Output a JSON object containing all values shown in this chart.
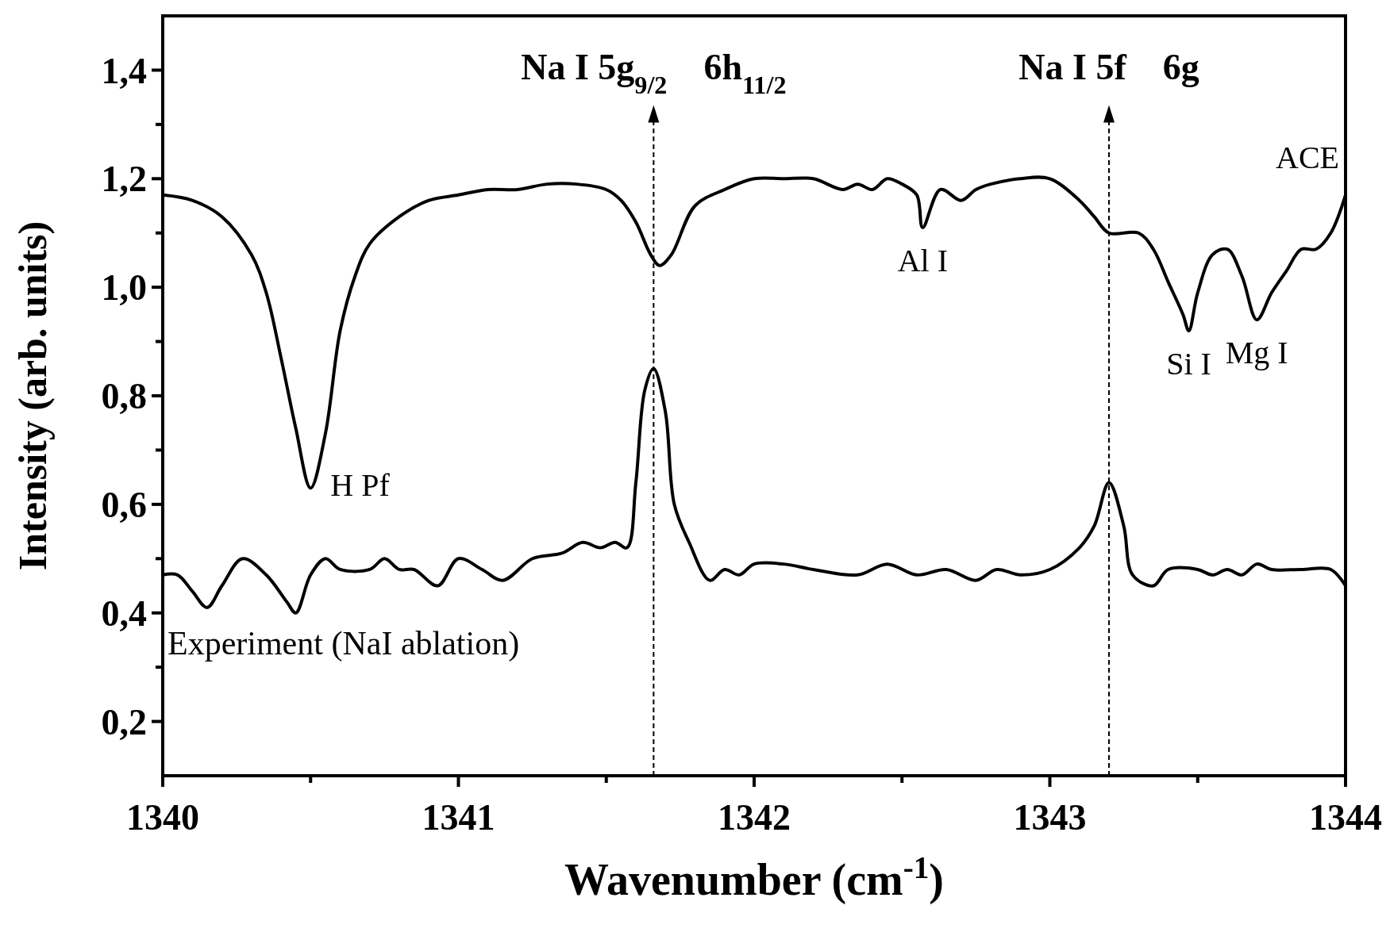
{
  "chart_data": {
    "type": "line",
    "xlabel": "Wavenumber (cm$^{-1}$)",
    "ylabel": "Intensity (arb. units)",
    "xlim": [
      1340,
      1344
    ],
    "ylim": [
      0.1,
      1.5
    ],
    "xticks": [
      1340,
      {
        "value": 1340.5,
        "label": null
      },
      1341,
      {
        "value": 1341.5,
        "label": null
      },
      1342,
      {
        "value": 1342.5,
        "label": null
      },
      1343,
      {
        "value": 1343.5,
        "label": null
      },
      1344
    ],
    "yticks": [
      {
        "value": 0.2,
        "label": "0,2"
      },
      {
        "value": 0.3,
        "label": null
      },
      {
        "value": 0.4,
        "label": "0,4"
      },
      {
        "value": 0.5,
        "label": null
      },
      {
        "value": 0.6,
        "label": "0,6"
      },
      {
        "value": 0.7,
        "label": null
      },
      {
        "value": 0.8,
        "label": "0,8"
      },
      {
        "value": 0.9,
        "label": null
      },
      {
        "value": 1.0,
        "label": "1,0"
      },
      {
        "value": 1.1,
        "label": null
      },
      {
        "value": 1.2,
        "label": "1,2"
      },
      {
        "value": 1.3,
        "label": null
      },
      {
        "value": 1.4,
        "label": "1,4"
      }
    ],
    "grid": false,
    "marker": "none",
    "line_style": "solid",
    "series": [
      {
        "name": "ACE",
        "color": "#000000",
        "x": [
          1340,
          1340.1,
          1340.2,
          1340.3,
          1340.35,
          1340.4,
          1340.45,
          1340.5,
          1340.55,
          1340.6,
          1340.65,
          1340.7,
          1340.8,
          1340.9,
          1341,
          1341.1,
          1341.2,
          1341.3,
          1341.4,
          1341.5,
          1341.55,
          1341.6,
          1341.65,
          1341.68,
          1341.72,
          1341.8,
          1341.9,
          1342,
          1342.1,
          1342.2,
          1342.3,
          1342.35,
          1342.4,
          1342.45,
          1342.5,
          1342.55,
          1342.57,
          1342.63,
          1342.7,
          1342.75,
          1342.8,
          1342.9,
          1343,
          1343.1,
          1343.15,
          1343.2,
          1343.3,
          1343.35,
          1343.4,
          1343.45,
          1343.47,
          1343.5,
          1343.55,
          1343.6,
          1343.65,
          1343.7,
          1343.75,
          1343.8,
          1343.85,
          1343.9,
          1343.95,
          1344
        ],
        "values": [
          1.17,
          1.16,
          1.13,
          1.06,
          0.99,
          0.87,
          0.74,
          0.63,
          0.73,
          0.92,
          1.02,
          1.08,
          1.13,
          1.16,
          1.17,
          1.18,
          1.18,
          1.19,
          1.19,
          1.18,
          1.16,
          1.12,
          1.06,
          1.04,
          1.06,
          1.15,
          1.18,
          1.2,
          1.2,
          1.2,
          1.18,
          1.19,
          1.18,
          1.2,
          1.19,
          1.17,
          1.11,
          1.18,
          1.16,
          1.18,
          1.19,
          1.2,
          1.2,
          1.16,
          1.13,
          1.1,
          1.1,
          1.07,
          1.01,
          0.95,
          0.92,
          0.99,
          1.06,
          1.07,
          1.02,
          0.94,
          0.99,
          1.03,
          1.07,
          1.07,
          1.1,
          1.17
        ]
      },
      {
        "name": "Experiment (NaI ablation)",
        "color": "#000000",
        "x": [
          1340,
          1340.05,
          1340.1,
          1340.15,
          1340.2,
          1340.27,
          1340.35,
          1340.42,
          1340.45,
          1340.5,
          1340.55,
          1340.6,
          1340.7,
          1340.75,
          1340.8,
          1340.85,
          1340.93,
          1341,
          1341.08,
          1341.15,
          1341.25,
          1341.35,
          1341.42,
          1341.48,
          1341.53,
          1341.57,
          1341.6,
          1341.63,
          1341.66,
          1341.7,
          1341.73,
          1341.78,
          1341.85,
          1341.9,
          1341.95,
          1342,
          1342.1,
          1342.2,
          1342.35,
          1342.45,
          1342.55,
          1342.65,
          1342.75,
          1342.82,
          1342.9,
          1343,
          1343.1,
          1343.15,
          1343.2,
          1343.25,
          1343.28,
          1343.35,
          1343.4,
          1343.5,
          1343.55,
          1343.6,
          1343.65,
          1343.7,
          1343.75,
          1343.85,
          1343.95,
          1344
        ],
        "values": [
          0.47,
          0.47,
          0.44,
          0.41,
          0.45,
          0.5,
          0.47,
          0.42,
          0.4,
          0.47,
          0.5,
          0.48,
          0.48,
          0.5,
          0.48,
          0.48,
          0.45,
          0.5,
          0.48,
          0.46,
          0.5,
          0.51,
          0.53,
          0.52,
          0.53,
          0.52,
          0.64,
          0.81,
          0.85,
          0.77,
          0.6,
          0.53,
          0.46,
          0.48,
          0.47,
          0.49,
          0.49,
          0.48,
          0.47,
          0.49,
          0.47,
          0.48,
          0.46,
          0.48,
          0.47,
          0.48,
          0.52,
          0.56,
          0.64,
          0.56,
          0.47,
          0.45,
          0.48,
          0.48,
          0.47,
          0.48,
          0.47,
          0.49,
          0.48,
          0.48,
          0.48,
          0.45
        ]
      }
    ],
    "ref_lines": [
      {
        "axis": "x",
        "value": 1341.66,
        "label": "Na I 5g$_{9/2}$    6h$_{11/2}$",
        "line_style": "dashed"
      },
      {
        "axis": "x",
        "value": 1343.2,
        "label": "Na I 5f    6g",
        "line_style": "dashed"
      }
    ],
    "annotations": [
      {
        "text": "H Pf",
        "x": 1340.5,
        "y": 0.63
      },
      {
        "text": "Al I",
        "x": 1342.57,
        "y": 1.11
      },
      {
        "text": "Si I",
        "x": 1343.47,
        "y": 0.92
      },
      {
        "text": "Mg I",
        "x": 1343.7,
        "y": 0.94
      }
    ]
  }
}
